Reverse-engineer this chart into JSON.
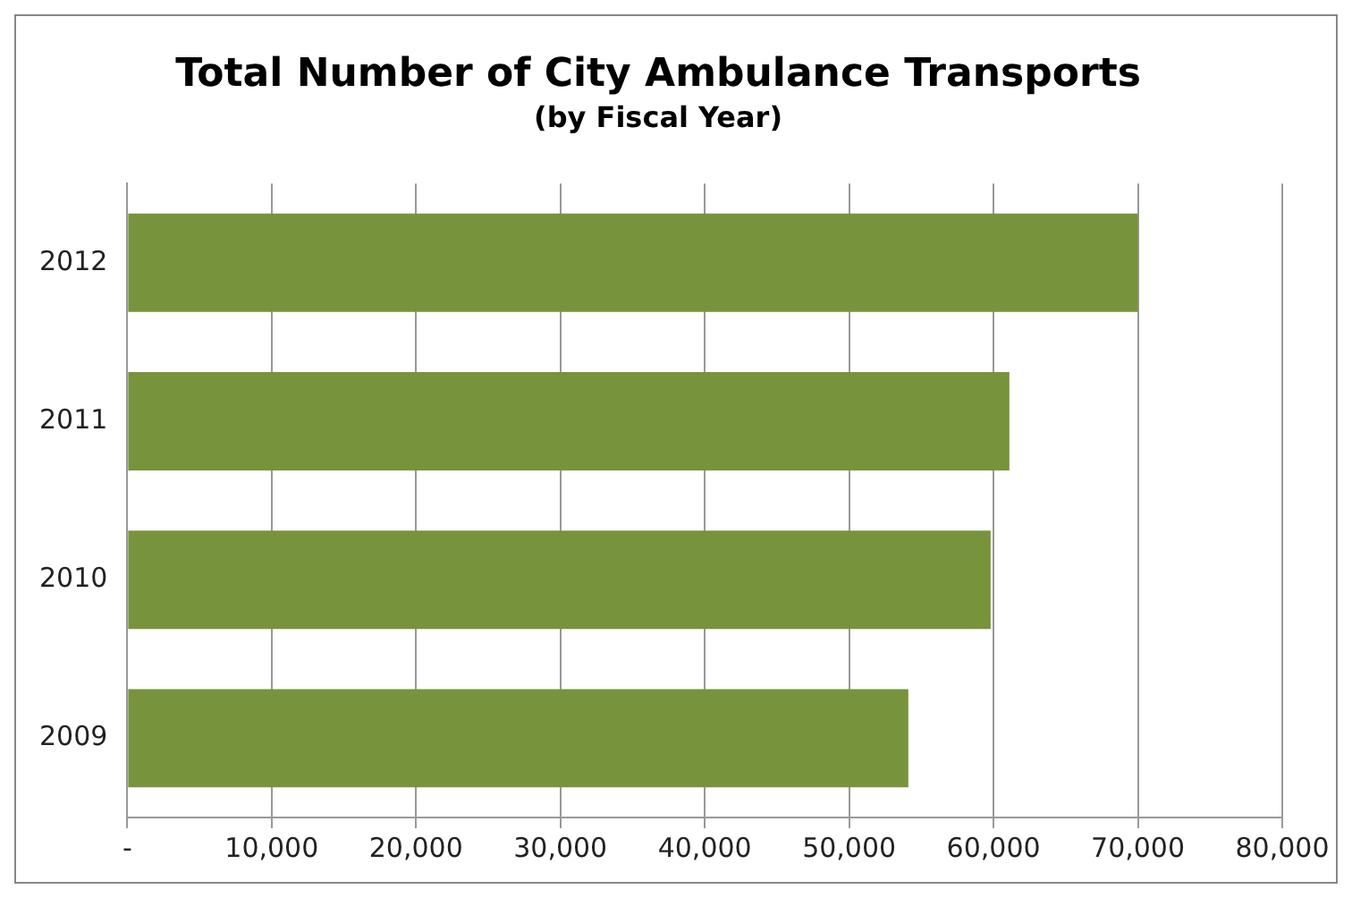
{
  "chart_data": {
    "type": "bar",
    "orientation": "horizontal",
    "title": "Total Number of City Ambulance Transports",
    "subtitle": "(by Fiscal Year)",
    "categories": [
      "2012",
      "2011",
      "2010",
      "2009"
    ],
    "values": [
      70000,
      61100,
      59800,
      54100
    ],
    "color": "#77933c",
    "xlim": [
      0,
      80000
    ],
    "xticks": [
      {
        "value": 0,
        "label": "-"
      },
      {
        "value": 10000,
        "label": "10,000"
      },
      {
        "value": 20000,
        "label": "20,000"
      },
      {
        "value": 30000,
        "label": "30,000"
      },
      {
        "value": 40000,
        "label": "40,000"
      },
      {
        "value": 50000,
        "label": "50,000"
      },
      {
        "value": 60000,
        "label": "60,000"
      },
      {
        "value": 70000,
        "label": "70,000"
      },
      {
        "value": 80000,
        "label": "80,000"
      }
    ],
    "grid": "x",
    "legend": false
  }
}
